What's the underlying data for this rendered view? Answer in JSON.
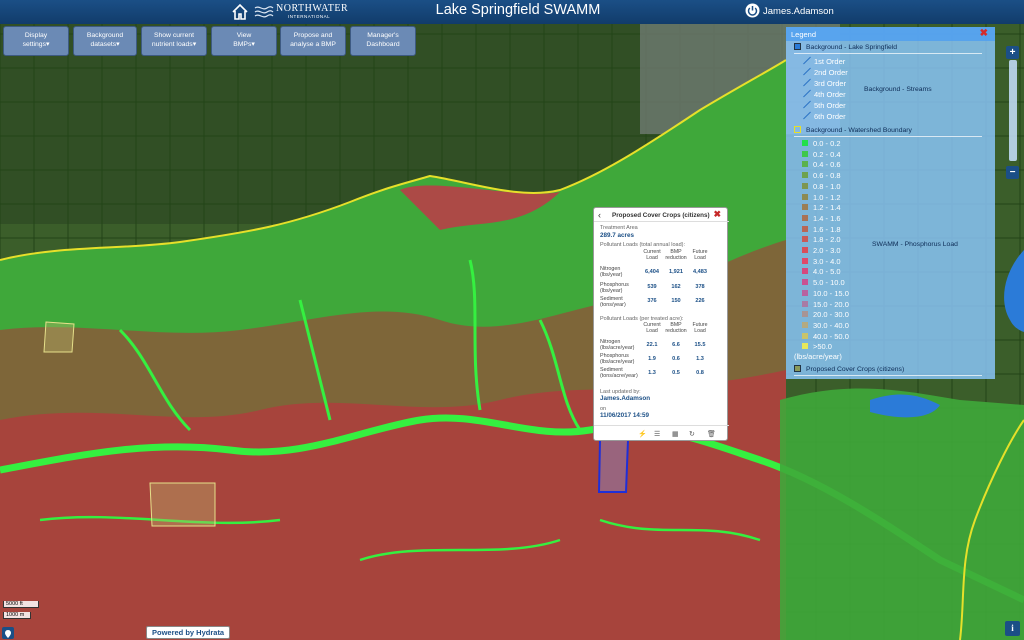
{
  "header": {
    "app_title": "Lake Springfield SWAMM",
    "brand_name": "NORTHWATER",
    "brand_sub": "INTERNATIONAL",
    "user": "James.Adamson"
  },
  "toolbar": {
    "buttons": [
      {
        "line1": "Display",
        "line2": "settings",
        "caret": true
      },
      {
        "line1": "Background",
        "line2": "datasets",
        "caret": true
      },
      {
        "line1": "Show current",
        "line2": "nutrient loads",
        "caret": true
      },
      {
        "line1": "View",
        "line2": "BMPs",
        "caret": true
      },
      {
        "line1": "Propose and",
        "line2": "analyse a BMP",
        "caret": false
      },
      {
        "line1": "Manager's",
        "line2": "Dashboard",
        "caret": false
      }
    ]
  },
  "legend": {
    "title": "Legend",
    "layers": {
      "lake": "Background - Lake Springfield",
      "streams": "Background - Streams",
      "watershed": "Background - Watershed Boundary",
      "phosphorus": "SWAMM - Phosphorus Load",
      "cover_crops": "Proposed Cover Crops (citizens)"
    },
    "stream_orders": [
      "1st Order",
      "2nd Order",
      "3rd Order",
      "4th Order",
      "5th Order",
      "6th Order"
    ],
    "phosphorus_classes": [
      {
        "label": "0.0 - 0.2",
        "color": "#22e04a"
      },
      {
        "label": "0.2 - 0.4",
        "color": "#3ec84a"
      },
      {
        "label": "0.4 - 0.6",
        "color": "#5ab24c"
      },
      {
        "label": "0.6 - 0.8",
        "color": "#6ea24e"
      },
      {
        "label": "0.8 - 1.0",
        "color": "#7d9650"
      },
      {
        "label": "1.0 - 1.2",
        "color": "#8c8a52"
      },
      {
        "label": "1.2 - 1.4",
        "color": "#9a7e54"
      },
      {
        "label": "1.4 - 1.6",
        "color": "#a87256"
      },
      {
        "label": "1.6 - 1.8",
        "color": "#b86656"
      },
      {
        "label": "1.8 - 2.0",
        "color": "#c85a58"
      },
      {
        "label": "2.0 - 3.0",
        "color": "#d84e5a"
      },
      {
        "label": "3.0 - 4.0",
        "color": "#e0486a"
      },
      {
        "label": "4.0 - 5.0",
        "color": "#d6487e"
      },
      {
        "label": "5.0 - 10.0",
        "color": "#c85292"
      },
      {
        "label": "10.0 - 15.0",
        "color": "#b862a0"
      },
      {
        "label": "15.0 - 20.0",
        "color": "#a87aa4"
      },
      {
        "label": "20.0 - 30.0",
        "color": "#a89494"
      },
      {
        "label": "30.0 - 40.0",
        "color": "#b4aa80"
      },
      {
        "label": "40.0 - 50.0",
        "color": "#c8c46a"
      },
      {
        "label": ">50.0",
        "color": "#e8e85a"
      }
    ],
    "units": "(lbs/acre/year)"
  },
  "popup": {
    "title": "Proposed Cover Crops (citizens)",
    "treatment_area_label": "Treatment Area",
    "treatment_area_value": "289.7 acres",
    "total_section_label": "Pollutant Loads (total annual load):",
    "per_acre_section_label": "Pollutant Loads (per treated acre):",
    "col_headers": [
      "Current\nLoad",
      "BMP\nreduction",
      "Future\nLoad"
    ],
    "total_rows": [
      {
        "label": "Nitrogen\n(lbs/year)",
        "current": "6,404",
        "reduction": "1,921",
        "future": "4,483"
      },
      {
        "label": "Phosphorus\n(lbs/year)",
        "current": "539",
        "reduction": "162",
        "future": "378"
      },
      {
        "label": "Sediment\n(tons/year)",
        "current": "376",
        "reduction": "150",
        "future": "226"
      }
    ],
    "per_acre_rows": [
      {
        "label": "Nitrogen\n(lbs/acre/year)",
        "current": "22.1",
        "reduction": "6.6",
        "future": "15.5"
      },
      {
        "label": "Phosphorus\n(lbs/acre/year)",
        "current": "1.9",
        "reduction": "0.6",
        "future": "1.3"
      },
      {
        "label": "Sediment\n(tons/acre/year)",
        "current": "1.3",
        "reduction": "0.5",
        "future": "0.8"
      }
    ],
    "updated_by_label": "Last updated by:",
    "updated_by": "James.Adamson",
    "on_label": "on",
    "updated_on": "11/06/2017 14:59"
  },
  "map": {
    "scale_top": "5000 ft",
    "scale_bottom": "1000 m",
    "powered_by": "Powered by Hydrata"
  },
  "colors": {
    "header": "#1b4f86",
    "button": "#6b8ab5",
    "watershed_boundary": "#e6e02a",
    "selected_field": "#1f2fd8",
    "low_load": "#22e04a",
    "high_load": "#d8304a"
  }
}
